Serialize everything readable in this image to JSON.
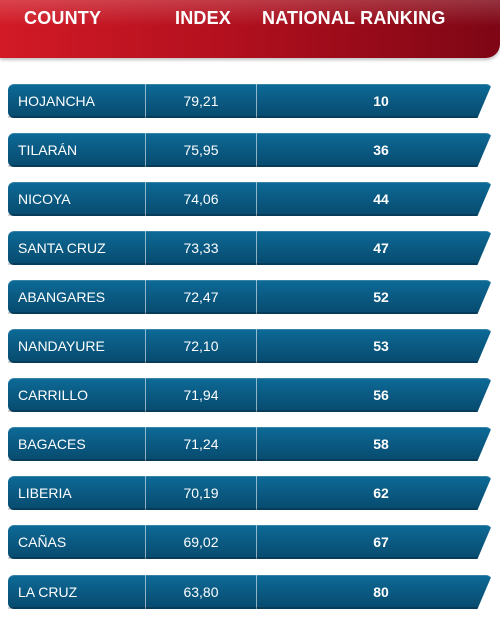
{
  "header": {
    "county_label": "COUNTY",
    "index_label": "INDEX",
    "ranking_label": "NATIONAL RANKING"
  },
  "colors": {
    "header_red": "#c8141f",
    "row_blue": "#0a5a83"
  },
  "rows": [
    {
      "county": "HOJANCHA",
      "index": "79,21",
      "rank": "10"
    },
    {
      "county": "TILARÁN",
      "index": "75,95",
      "rank": "36"
    },
    {
      "county": "NICOYA",
      "index": "74,06",
      "rank": "44"
    },
    {
      "county": "SANTA CRUZ",
      "index": "73,33",
      "rank": "47"
    },
    {
      "county": "ABANGARES",
      "index": "72,47",
      "rank": "52"
    },
    {
      "county": "NANDAYURE",
      "index": "72,10",
      "rank": "53"
    },
    {
      "county": "CARRILLO",
      "index": "71,94",
      "rank": "56"
    },
    {
      "county": "BAGACES",
      "index": "71,24",
      "rank": "58"
    },
    {
      "county": "LIBERIA",
      "index": "70,19",
      "rank": "62"
    },
    {
      "county": "CAÑAS",
      "index": "69,02",
      "rank": "67"
    },
    {
      "county": "LA CRUZ",
      "index": "63,80",
      "rank": "80"
    }
  ]
}
